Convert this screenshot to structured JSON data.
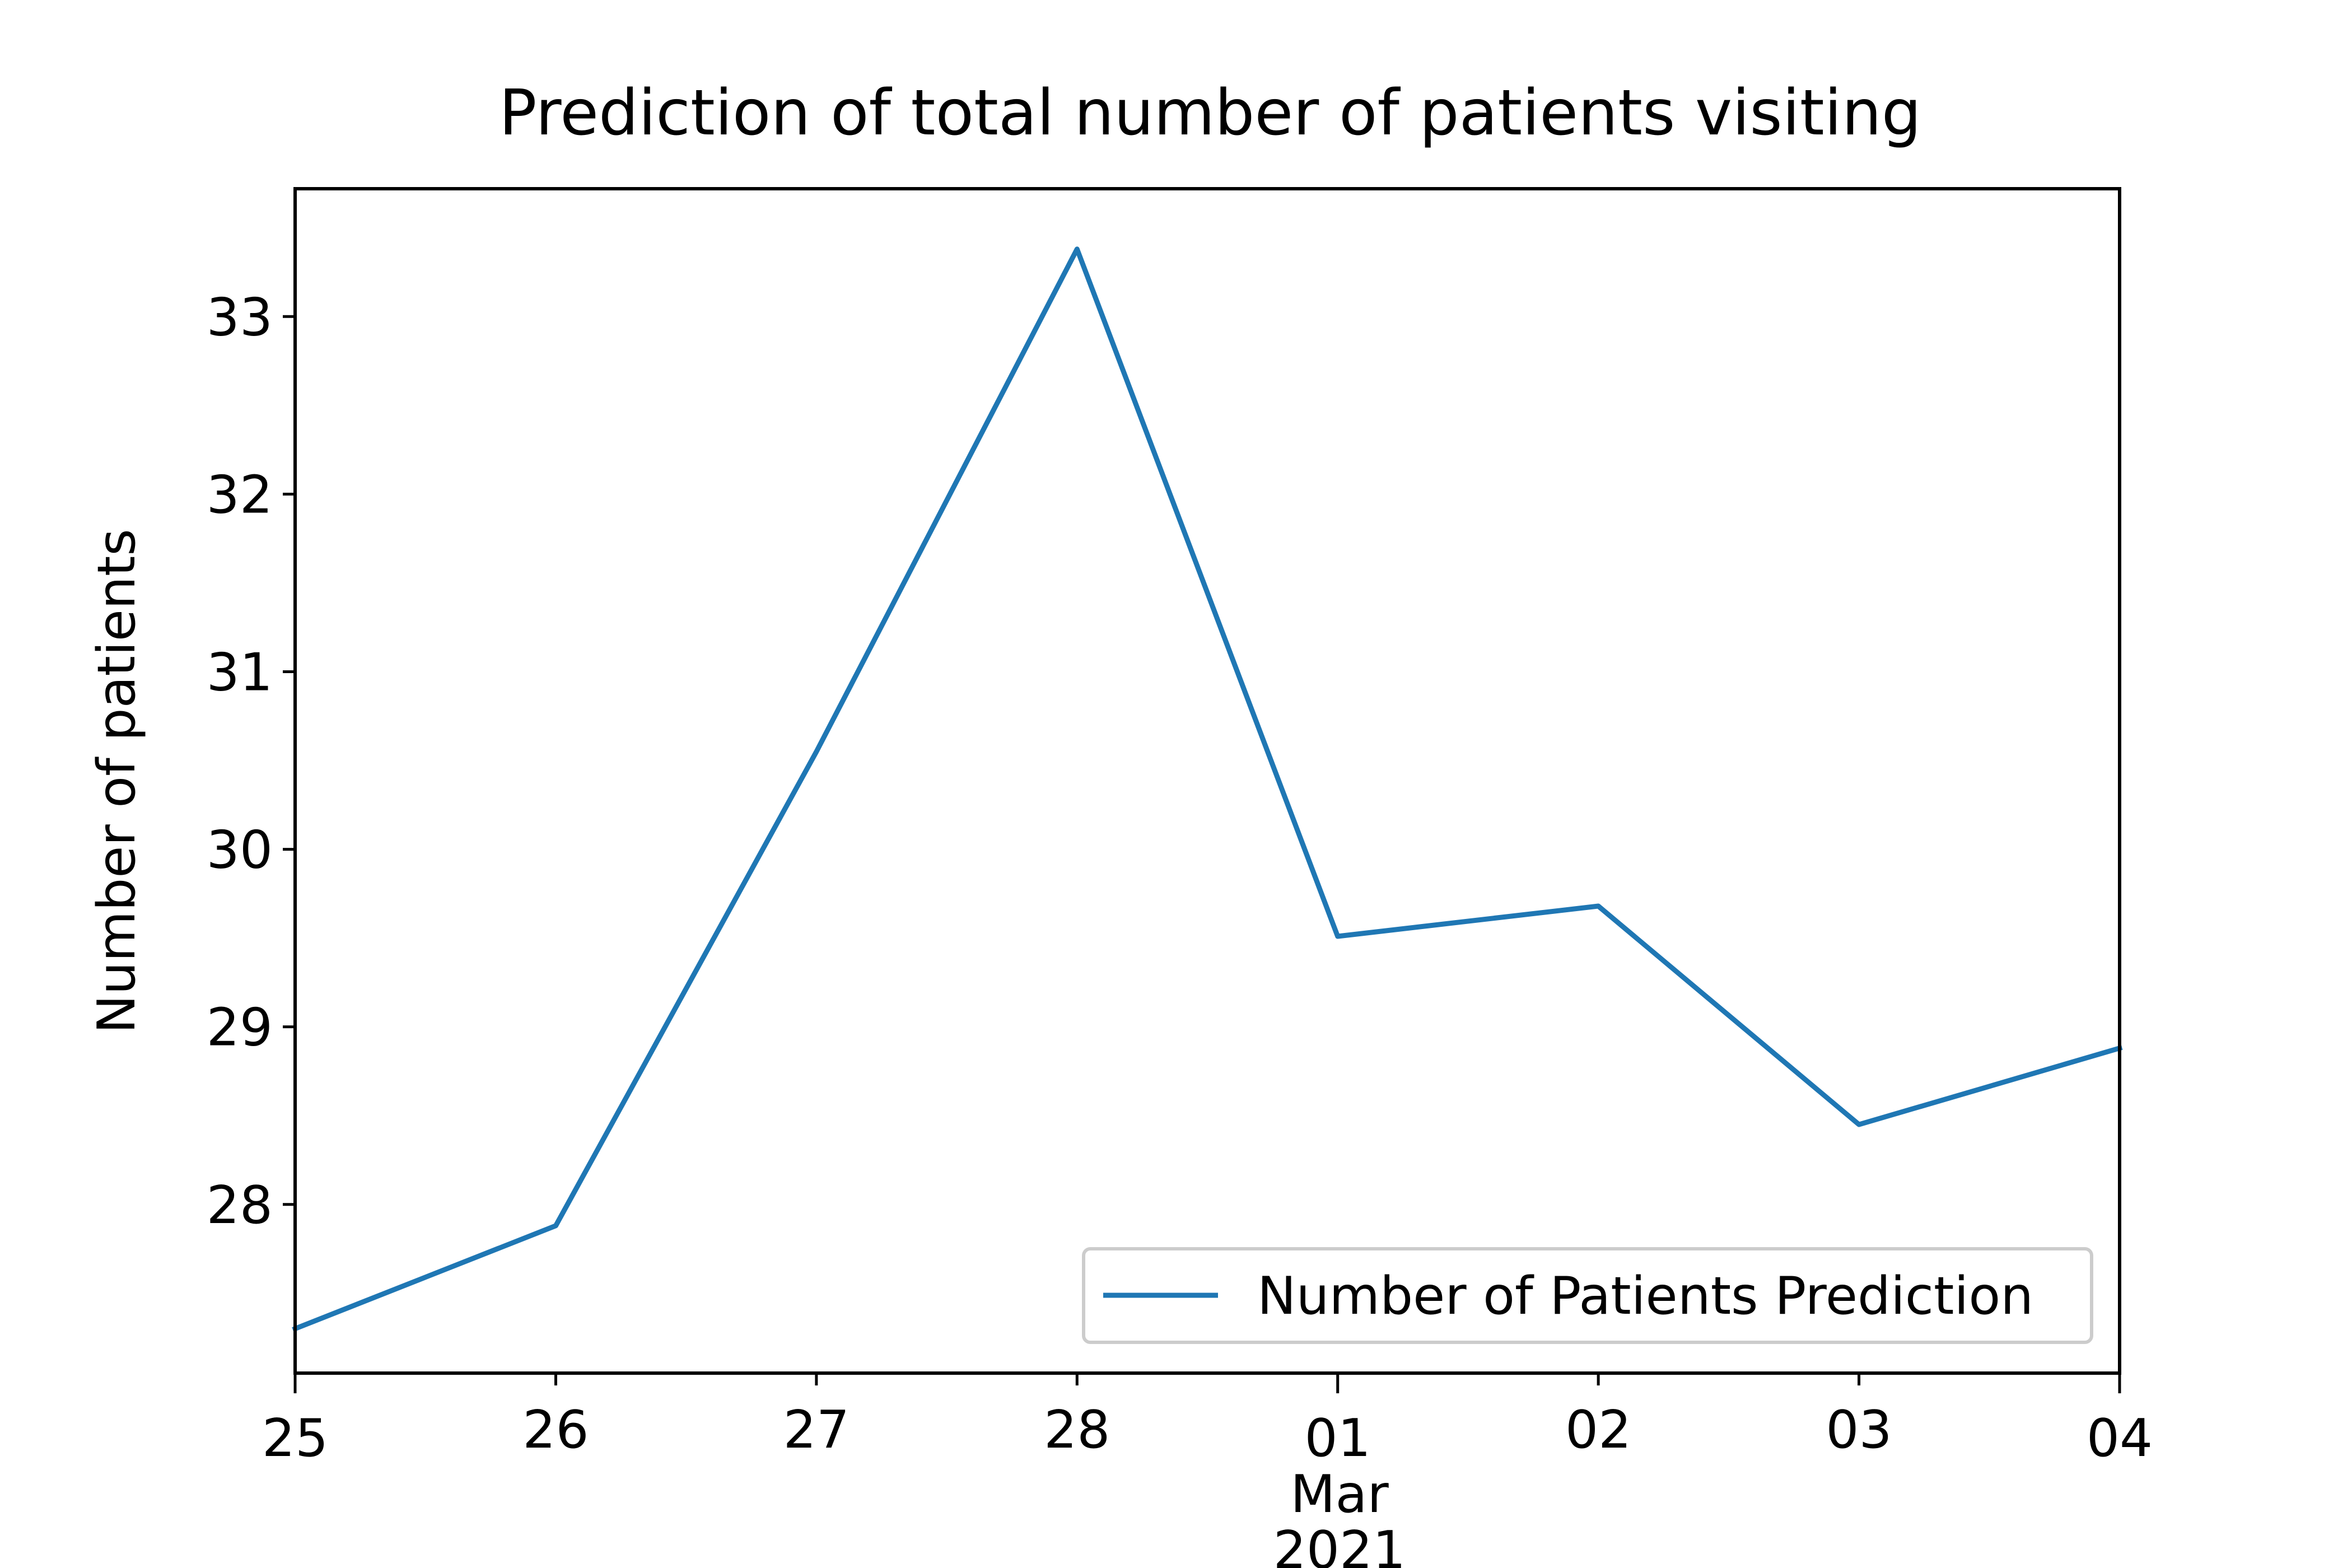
{
  "chart_data": {
    "type": "line",
    "title": "Prediction of total number of patients visiting",
    "xlabel": "",
    "ylabel": "Number of patients",
    "x": [
      "2021-02-25",
      "2021-02-26",
      "2021-02-27",
      "2021-02-28",
      "2021-03-01",
      "2021-03-02",
      "2021-03-03",
      "2021-03-04"
    ],
    "x_tick_labels": [
      "25",
      "26",
      "27",
      "28",
      "01",
      "02",
      "03",
      "04"
    ],
    "x_secondary_label": [
      "Mar",
      "2021"
    ],
    "series": [
      {
        "name": "Number of Patients Prediction",
        "color": "#1f77b4",
        "values": [
          27.3,
          27.88,
          30.55,
          33.38,
          29.51,
          29.68,
          28.45,
          28.88
        ]
      }
    ],
    "ylim": [
      27.05,
      33.72
    ],
    "y_ticks": [
      28,
      29,
      30,
      31,
      32,
      33
    ],
    "grid": false,
    "legend_position": "lower-right"
  }
}
